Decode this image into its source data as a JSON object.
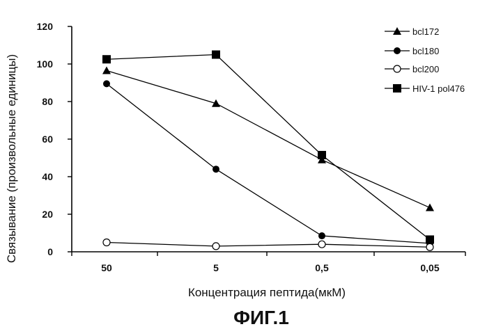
{
  "chart_data": {
    "type": "line",
    "title": "ФИГ.1",
    "xlabel": "Концентрация пептида(мкМ)",
    "ylabel": "Связывание  (произвольные единицы)",
    "categories": [
      "50",
      "5",
      "0,5",
      "0,05"
    ],
    "ylim": [
      0,
      120
    ],
    "yticks": [
      "0",
      "20",
      "40",
      "60",
      "80",
      "100",
      "120"
    ],
    "grid": false,
    "legend_position": "top-right",
    "series": [
      {
        "name": "bcl172",
        "marker": "triangle",
        "color": "#000000",
        "values": [
          96.5,
          79,
          49,
          23.5
        ]
      },
      {
        "name": "bcl180",
        "marker": "circle-filled",
        "color": "#000000",
        "values": [
          89.5,
          44,
          8.5,
          4.5
        ]
      },
      {
        "name": "bcl200",
        "marker": "circle-open",
        "color": "#000000",
        "values": [
          5,
          3,
          4,
          2.5
        ]
      },
      {
        "name": "HIV-1 pol476",
        "marker": "square",
        "color": "#000000",
        "values": [
          102.5,
          105,
          51.5,
          6.5
        ]
      }
    ]
  }
}
